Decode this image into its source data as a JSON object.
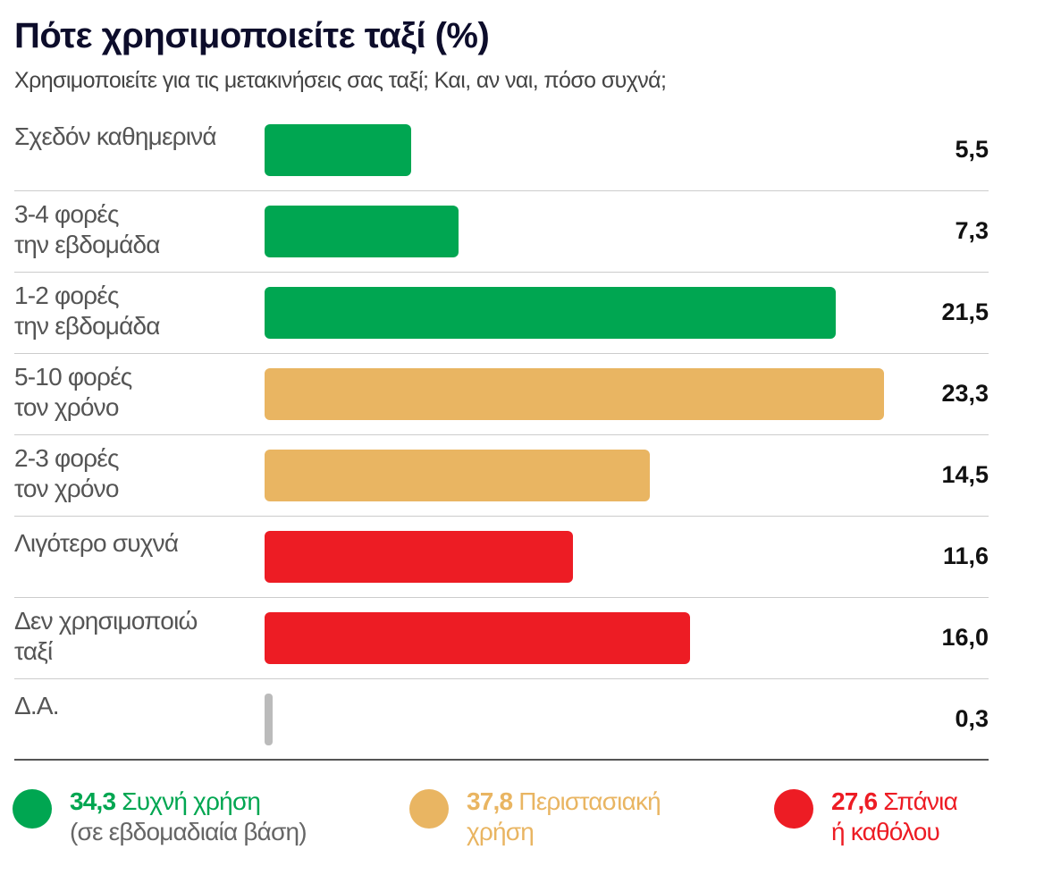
{
  "chart_data": {
    "type": "bar",
    "orientation": "horizontal",
    "title": "Πότε χρησιμοποιείτε ταξί (%)",
    "subtitle": "Χρησιμοποιείτε για τις μετακινήσεις σας ταξί; Και, αν ναι, πόσο συχνά;",
    "categories": [
      "Σχεδόν καθημερινά",
      "3-4 φορές\nτην εβδομάδα",
      "1-2 φορές\nτην εβδομάδα",
      "5-10 φορές\nτον χρόνο",
      "2-3 φορές\nτον χρόνο",
      "Λιγότερο συχνά",
      "Δεν χρησιμοποιώ\nταξί",
      "Δ.Α."
    ],
    "values": [
      5.5,
      7.3,
      21.5,
      23.3,
      14.5,
      11.6,
      16.0,
      0.3
    ],
    "value_labels": [
      "5,5",
      "7,3",
      "21,5",
      "23,3",
      "14,5",
      "11,6",
      "16,0",
      "0,3"
    ],
    "bar_colors": [
      "#00a651",
      "#00a651",
      "#00a651",
      "#e9b562",
      "#e9b562",
      "#ed1c24",
      "#ed1c24",
      "#bbbbbb"
    ],
    "xlim": [
      0,
      23.3
    ],
    "grid": false,
    "legend": [
      {
        "value": "34,3",
        "label": "Συχνή χρήση",
        "sub": "(σε εβδομαδιαία βάση)",
        "color": "#00a651"
      },
      {
        "value": "37,8",
        "label": "Περιστασιακή",
        "sub": "χρήση",
        "color": "#e9b562"
      },
      {
        "value": "27,6",
        "label": "Σπάνια",
        "sub": "ή καθόλου",
        "color": "#ed1c24"
      }
    ],
    "legend_placement": "bottom"
  }
}
